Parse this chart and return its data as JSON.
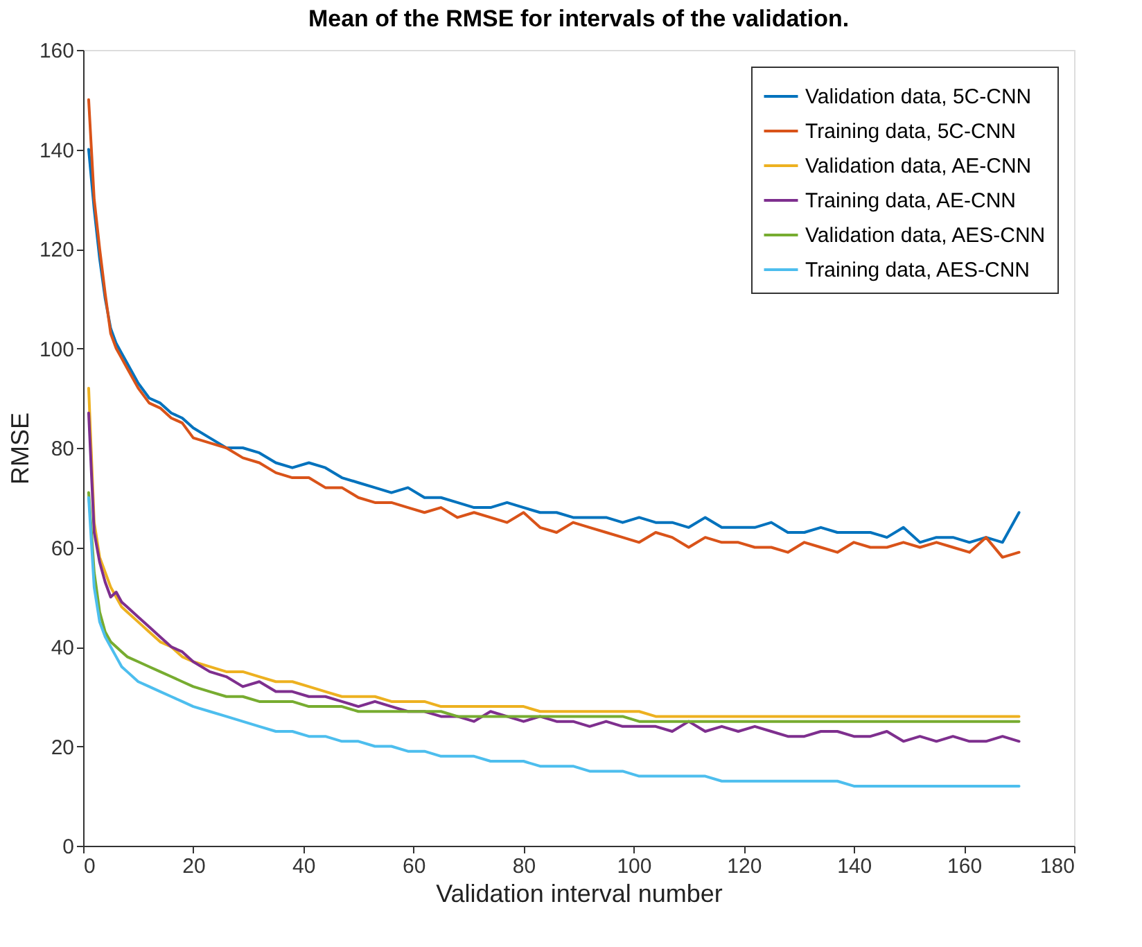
{
  "chart_data": {
    "type": "line",
    "title": "Mean of the RMSE for intervals of the validation.",
    "xlabel": "Validation interval number",
    "ylabel": "RMSE",
    "x": [
      1,
      2,
      3,
      4,
      5,
      6,
      7,
      8,
      10,
      12,
      14,
      16,
      18,
      20,
      23,
      26,
      29,
      32,
      35,
      38,
      41,
      44,
      47,
      50,
      53,
      56,
      59,
      62,
      65,
      68,
      71,
      74,
      77,
      80,
      83,
      86,
      89,
      92,
      95,
      98,
      101,
      104,
      107,
      110,
      113,
      116,
      119,
      122,
      125,
      128,
      131,
      134,
      137,
      140,
      143,
      146,
      149,
      152,
      155,
      158,
      161,
      164,
      167,
      170
    ],
    "series": [
      {
        "name": "Validation data, 5C-CNN",
        "color": "#0072bd",
        "values": [
          140,
          128,
          118,
          110,
          104,
          101,
          99,
          97,
          93,
          90,
          89,
          87,
          86,
          84,
          82,
          80,
          80,
          79,
          77,
          76,
          77,
          76,
          74,
          73,
          72,
          71,
          72,
          70,
          70,
          69,
          68,
          68,
          69,
          68,
          67,
          67,
          66,
          66,
          66,
          65,
          66,
          65,
          65,
          64,
          66,
          64,
          64,
          64,
          65,
          63,
          63,
          64,
          63,
          63,
          63,
          62,
          64,
          61,
          62,
          62,
          61,
          62,
          61,
          67
        ]
      },
      {
        "name": "Training data, 5C-CNN",
        "color": "#d95319",
        "values": [
          150,
          130,
          120,
          111,
          103,
          100,
          98,
          96,
          92,
          89,
          88,
          86,
          85,
          82,
          81,
          80,
          78,
          77,
          75,
          74,
          74,
          72,
          72,
          70,
          69,
          69,
          68,
          67,
          68,
          66,
          67,
          66,
          65,
          67,
          64,
          63,
          65,
          64,
          63,
          62,
          61,
          63,
          62,
          60,
          62,
          61,
          61,
          60,
          60,
          59,
          61,
          60,
          59,
          61,
          60,
          60,
          61,
          60,
          61,
          60,
          59,
          62,
          58,
          59
        ]
      },
      {
        "name": "Validation data, AE-CNN",
        "color": "#edb120",
        "values": [
          92,
          65,
          58,
          55,
          52,
          50,
          48,
          47,
          45,
          43,
          41,
          40,
          38,
          37,
          36,
          35,
          35,
          34,
          33,
          33,
          32,
          31,
          30,
          30,
          30,
          29,
          29,
          29,
          28,
          28,
          28,
          28,
          28,
          28,
          27,
          27,
          27,
          27,
          27,
          27,
          27,
          26,
          26,
          26,
          26,
          26,
          26,
          26,
          26,
          26,
          26,
          26,
          26,
          26,
          26,
          26,
          26,
          26,
          26,
          26,
          26,
          26,
          26,
          26
        ]
      },
      {
        "name": "Training data, AE-CNN",
        "color": "#7e2f8e",
        "values": [
          87,
          63,
          57,
          53,
          50,
          51,
          49,
          48,
          46,
          44,
          42,
          40,
          39,
          37,
          35,
          34,
          32,
          33,
          31,
          31,
          30,
          30,
          29,
          28,
          29,
          28,
          27,
          27,
          26,
          26,
          25,
          27,
          26,
          25,
          26,
          25,
          25,
          24,
          25,
          24,
          24,
          24,
          23,
          25,
          23,
          24,
          23,
          24,
          23,
          22,
          22,
          23,
          23,
          22,
          22,
          23,
          21,
          22,
          21,
          22,
          21,
          21,
          22,
          21
        ]
      },
      {
        "name": "Validation data, AES-CNN",
        "color": "#77ac30",
        "values": [
          71,
          55,
          47,
          43,
          41,
          40,
          39,
          38,
          37,
          36,
          35,
          34,
          33,
          32,
          31,
          30,
          30,
          29,
          29,
          29,
          28,
          28,
          28,
          27,
          27,
          27,
          27,
          27,
          27,
          26,
          26,
          26,
          26,
          26,
          26,
          26,
          26,
          26,
          26,
          26,
          25,
          25,
          25,
          25,
          25,
          25,
          25,
          25,
          25,
          25,
          25,
          25,
          25,
          25,
          25,
          25,
          25,
          25,
          25,
          25,
          25,
          25,
          25,
          25
        ]
      },
      {
        "name": "Training data, AES-CNN",
        "color": "#4dbeee",
        "values": [
          70,
          52,
          45,
          42,
          40,
          38,
          36,
          35,
          33,
          32,
          31,
          30,
          29,
          28,
          27,
          26,
          25,
          24,
          23,
          23,
          22,
          22,
          21,
          21,
          20,
          20,
          19,
          19,
          18,
          18,
          18,
          17,
          17,
          17,
          16,
          16,
          16,
          15,
          15,
          15,
          14,
          14,
          14,
          14,
          14,
          13,
          13,
          13,
          13,
          13,
          13,
          13,
          13,
          12,
          12,
          12,
          12,
          12,
          12,
          12,
          12,
          12,
          12,
          12
        ]
      }
    ],
    "xlim": [
      0,
      180
    ],
    "xticks": [
      0,
      20,
      40,
      60,
      80,
      100,
      120,
      140,
      160,
      180
    ],
    "ylim": [
      0,
      160
    ],
    "yticks": [
      0,
      20,
      40,
      60,
      80,
      100,
      120,
      140,
      160
    ],
    "grid": false,
    "legend": "top right",
    "marker": "none",
    "line_style": "solid"
  }
}
